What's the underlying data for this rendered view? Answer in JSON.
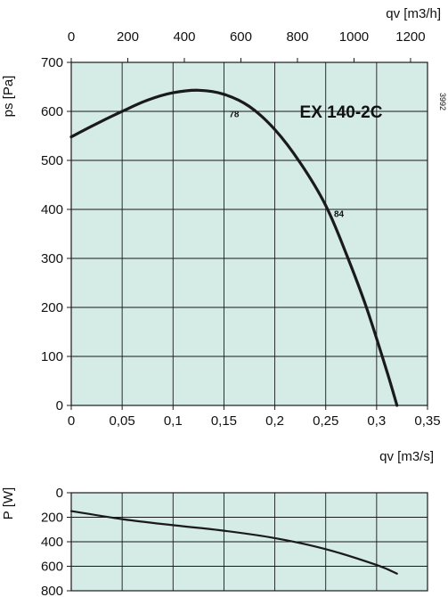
{
  "chart_data": [
    {
      "type": "line",
      "title": "EX 140-2C",
      "ylabel": "ps [Pa]",
      "xlabel_bottom": "qv [m3/s]",
      "xlabel_top": "qv [m3/h]",
      "xlim": [
        0,
        0.35
      ],
      "ylim": [
        0,
        700
      ],
      "x_ticks": [
        "0",
        "0,05",
        "0,1",
        "0,15",
        "0,2",
        "0,25",
        "0,3",
        "0,35"
      ],
      "y_ticks": [
        "0",
        "100",
        "200",
        "300",
        "400",
        "500",
        "600",
        "700"
      ],
      "top_x_ticks": [
        "0",
        "200",
        "400",
        "600",
        "800",
        "1000",
        "1200"
      ],
      "top_x_values": [
        0,
        200,
        400,
        600,
        800,
        1000,
        1200
      ],
      "series": [
        {
          "x": [
            0,
            0.025,
            0.05,
            0.075,
            0.1,
            0.125,
            0.15,
            0.175,
            0.2,
            0.225,
            0.25,
            0.27,
            0.29,
            0.31,
            0.32
          ],
          "values": [
            548,
            575,
            600,
            623,
            638,
            643,
            635,
            610,
            563,
            495,
            408,
            310,
            200,
            70,
            0
          ]
        }
      ],
      "annotations": [
        {
          "text": "78",
          "x": 0.16,
          "y": 588
        },
        {
          "text": "84",
          "x": 0.263,
          "y": 385
        }
      ],
      "side_code": "3992",
      "grid": true,
      "background": "#d4ebe6",
      "line_color": "#1a1a1a"
    },
    {
      "type": "line",
      "ylabel": "P [W]",
      "xlim": [
        0,
        0.35
      ],
      "ylim": [
        800,
        0
      ],
      "y_ticks": [
        "0",
        "200",
        "400",
        "600",
        "800"
      ],
      "series": [
        {
          "x": [
            0,
            0.05,
            0.1,
            0.15,
            0.2,
            0.25,
            0.3,
            0.32
          ],
          "values": [
            150,
            215,
            265,
            310,
            370,
            460,
            590,
            660
          ]
        }
      ],
      "grid": true
    }
  ]
}
